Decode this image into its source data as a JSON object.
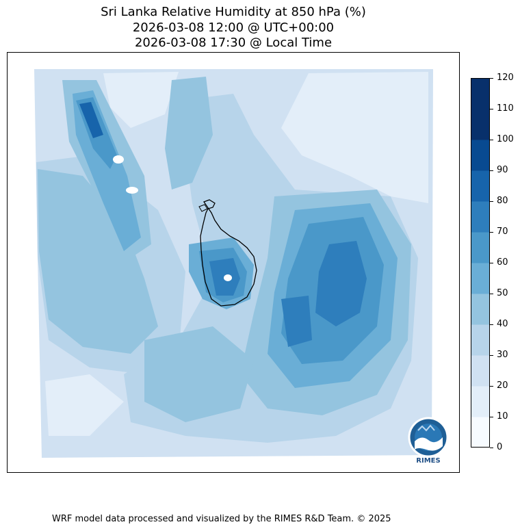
{
  "title": {
    "line1": "Sri Lanka Relative Humidity at 850 hPa (%)",
    "line2": "2026-03-08 12:00 @ UTC+00:00",
    "line3": "2026-03-08 17:30 @ Local Time"
  },
  "colorbar": {
    "ticks": [
      "0",
      "10",
      "20",
      "30",
      "40",
      "50",
      "60",
      "70",
      "80",
      "90",
      "100",
      "110",
      "120"
    ],
    "colors": [
      "#f7fbff",
      "#e3eef9",
      "#d0e1f2",
      "#b7d4ea",
      "#94c4df",
      "#6aaed6",
      "#4a98c9",
      "#2e7ebc",
      "#1764ab",
      "#084a91",
      "#08306b",
      "#08306b"
    ]
  },
  "logo": {
    "text": "RIMES"
  },
  "footer": "WRF model data processed and visualized by the RIMES R&D Team. © 2025"
}
